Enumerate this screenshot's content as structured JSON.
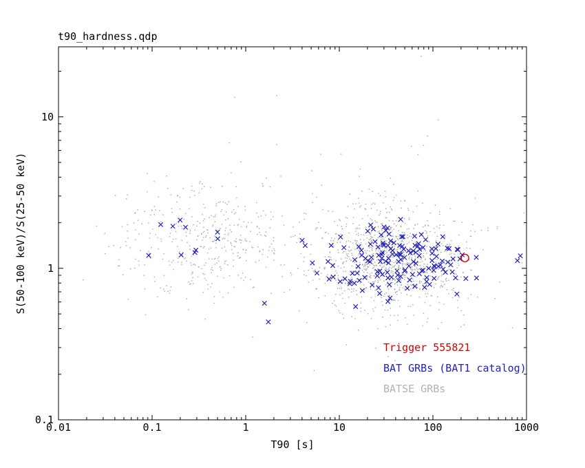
{
  "chart_data": {
    "type": "scatter",
    "title": "t90_hardness.qdp",
    "xlabel": "T90 [s]",
    "ylabel": "S(50-100 keV)/S(25-50 keV)",
    "xscale": "log",
    "yscale": "log",
    "xlim": [
      0.01,
      1000
    ],
    "ylim": [
      0.1,
      29
    ],
    "xticks": [
      "0.01",
      "0.1",
      "1",
      "10",
      "100",
      "1000"
    ],
    "yticks": [
      "0.1",
      "1",
      "10"
    ],
    "grid": false,
    "legend_position": "lower-right-inside",
    "legend": [
      {
        "label": "Trigger 555821",
        "color": "#d40000"
      },
      {
        "label": "BAT GRBs (BAT1 catalog)",
        "color": "#2222bb"
      },
      {
        "label": "BATSE GRBs",
        "color": "#b3b3b3"
      }
    ],
    "series": [
      {
        "name": "BATSE GRBs",
        "marker": "dot",
        "color": "#b3b3b3",
        "synthetic": true,
        "clusters": [
          {
            "n": 420,
            "log10_t90_mean": -0.45,
            "log10_t90_sd": 0.5,
            "log10_hr_mean": 0.2,
            "log10_hr_sd": 0.2
          },
          {
            "n": 1030,
            "log10_t90_mean": 1.52,
            "log10_t90_sd": 0.42,
            "log10_hr_mean": 0.06,
            "log10_hr_sd": 0.18
          },
          {
            "n": 50,
            "log10_t90_mean": 0.9,
            "log10_t90_sd": 1.1,
            "log10_hr_mean": 0.25,
            "log10_hr_sd": 0.55
          }
        ]
      },
      {
        "name": "BAT GRBs (BAT1 catalog)",
        "marker": "x",
        "color": "#2222bb",
        "synthetic": true,
        "clusters": [
          {
            "n": 150,
            "log10_t90_mean": 1.6,
            "log10_t90_sd": 0.42,
            "log10_hr_mean": 0.07,
            "log10_hr_sd": 0.1
          },
          {
            "n": 10,
            "log10_t90_mean": -0.75,
            "log10_t90_sd": 0.35,
            "log10_hr_mean": 0.18,
            "log10_hr_sd": 0.12
          },
          {
            "n": 4,
            "log10_t90_mean": 0.9,
            "log10_t90_sd": 0.6,
            "log10_hr_mean": -0.33,
            "log10_hr_sd": 0.08
          }
        ]
      },
      {
        "name": "Trigger 555821",
        "marker": "open-circle",
        "color": "#d40000",
        "points": [
          [
            220,
            1.17
          ]
        ]
      }
    ]
  }
}
